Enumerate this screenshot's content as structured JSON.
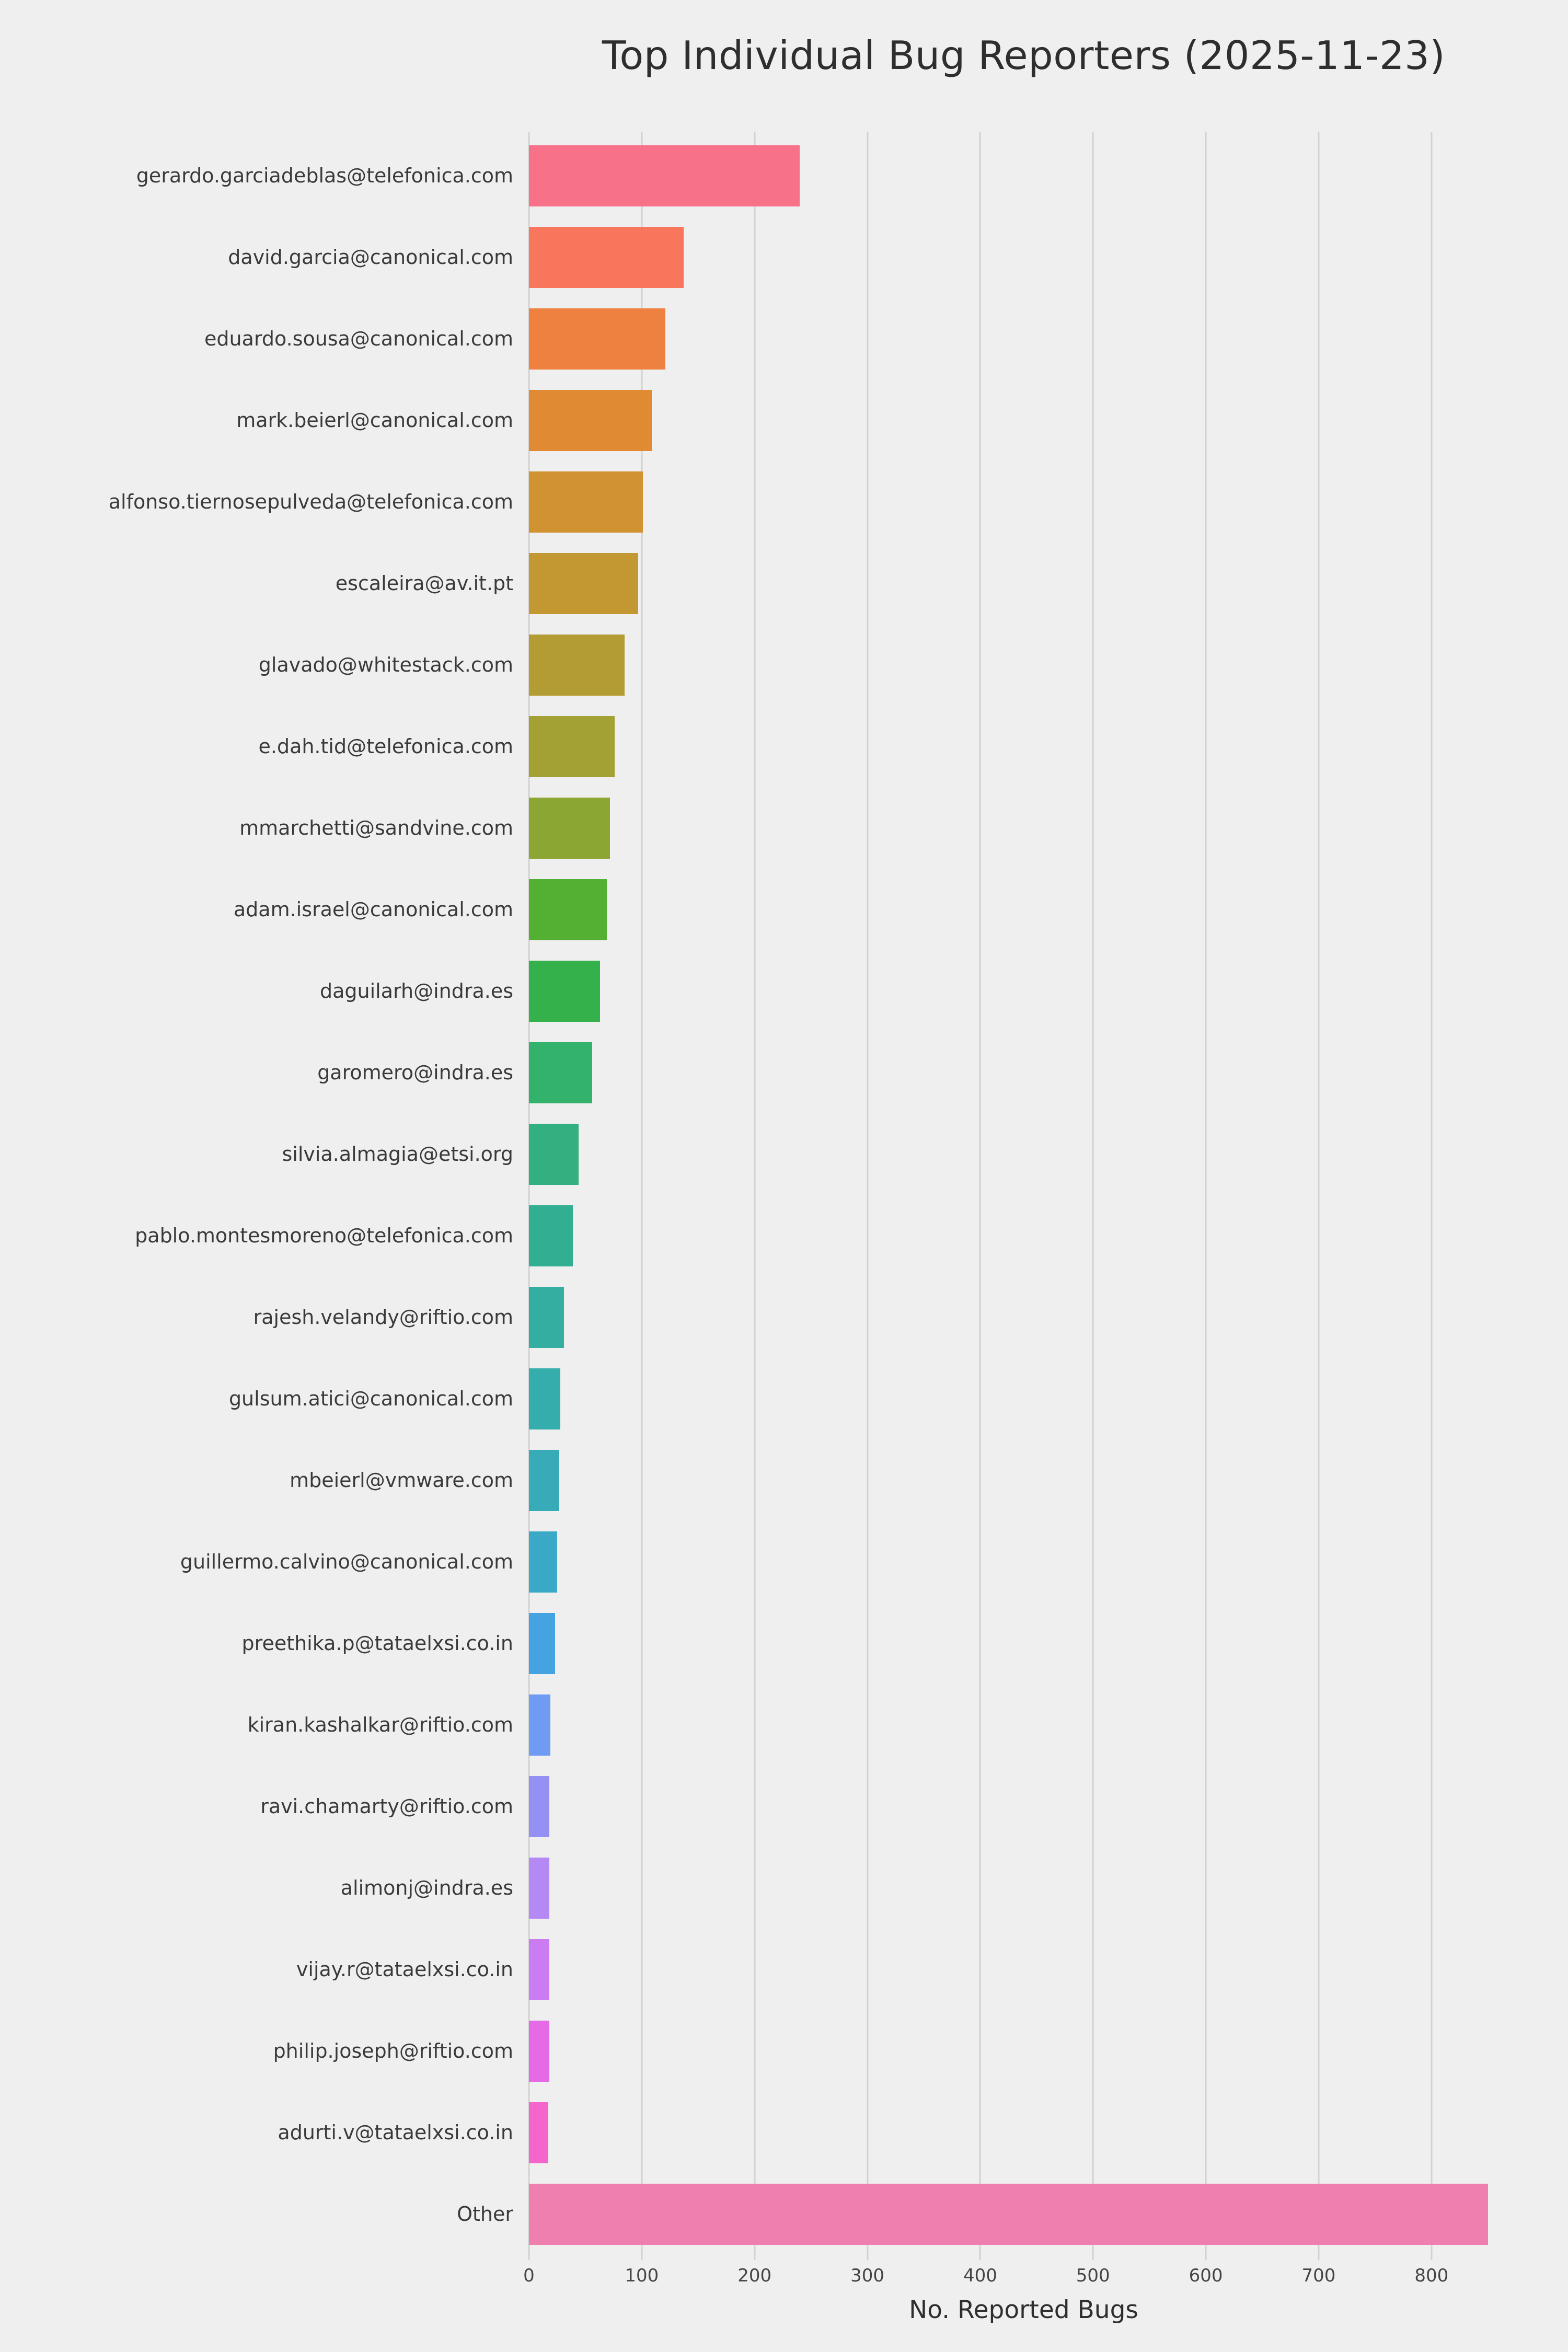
{
  "colors": {
    "background": "#efefef",
    "gridline": "#d2d2d2",
    "title_text": "#2e2e2e",
    "category_label_text": "#3a3a3a",
    "tick_text": "#444444"
  },
  "chart_data": {
    "type": "bar",
    "orientation": "horizontal",
    "title": "Top Individual Bug Reporters (2025-11-23)",
    "xlabel": "No. Reported Bugs",
    "ylabel": "",
    "xlim": [
      0,
      877
    ],
    "xticks": [
      0,
      100,
      200,
      300,
      400,
      500,
      600,
      700,
      800
    ],
    "grid": "vertical",
    "legend": "none",
    "categories": [
      "gerardo.garciadeblas@telefonica.com",
      "david.garcia@canonical.com",
      "eduardo.sousa@canonical.com",
      "mark.beierl@canonical.com",
      "alfonso.tiernosepulveda@telefonica.com",
      "escaleira@av.it.pt",
      "glavado@whitestack.com",
      "e.dah.tid@telefonica.com",
      "mmarchetti@sandvine.com",
      "adam.israel@canonical.com",
      "daguilarh@indra.es",
      "garomero@indra.es",
      "silvia.almagia@etsi.org",
      "pablo.montesmoreno@telefonica.com",
      "rajesh.velandy@riftio.com",
      "gulsum.atici@canonical.com",
      "mbeierl@vmware.com",
      "guillermo.calvino@canonical.com",
      "preethika.p@tataelxsi.co.in",
      "kiran.kashalkar@riftio.com",
      "ravi.chamarty@riftio.com",
      "alimonj@indra.es",
      "vijay.r@tataelxsi.co.in",
      "philip.joseph@riftio.com",
      "adurti.v@tataelxsi.co.in",
      "Other"
    ],
    "values": [
      240,
      137,
      121,
      109,
      101,
      97,
      85,
      76,
      72,
      69,
      63,
      56,
      44,
      39,
      31,
      28,
      27,
      25,
      23,
      19,
      18,
      18,
      18,
      18,
      17,
      850
    ],
    "bar_colors": [
      "#f77189",
      "#f7765c",
      "#ee8040",
      "#e08a33",
      "#d19231",
      "#c39732",
      "#b39c33",
      "#a3a133",
      "#8ca633",
      "#54b033",
      "#35b14b",
      "#33b26c",
      "#33b080",
      "#32af92",
      "#33aea0",
      "#35adac",
      "#38abb8",
      "#3aa8c7",
      "#44a3e0",
      "#6f9bf3",
      "#9591f4",
      "#b489f4",
      "#cc7cf2",
      "#e56ae6",
      "#f466cb",
      "#ef7fae"
    ]
  }
}
